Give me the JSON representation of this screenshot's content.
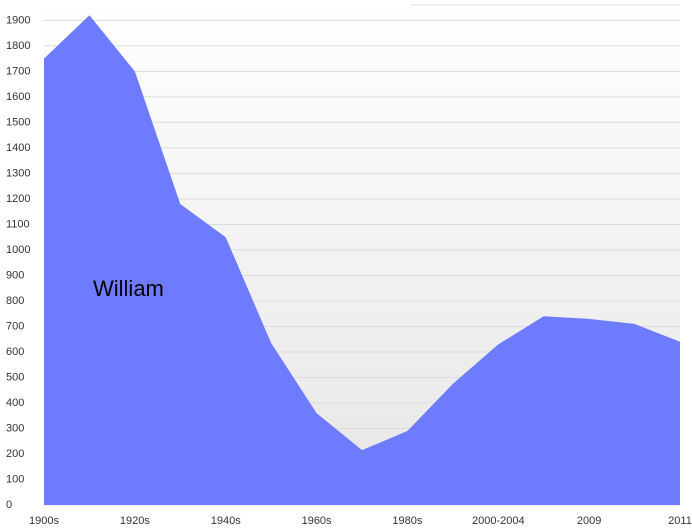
{
  "chart_data": {
    "type": "area",
    "categories": [
      "1900s",
      null,
      "1920s",
      null,
      "1940s",
      null,
      "1960s",
      null,
      "1980s",
      null,
      "2000-2004",
      null,
      "2009",
      null,
      "2011"
    ],
    "series": [
      {
        "name": "William",
        "color": "#6f7bff",
        "values": [
          1750,
          1920,
          1700,
          1180,
          1050,
          635,
          360,
          215,
          290,
          475,
          630,
          740,
          730,
          710,
          640
        ]
      }
    ],
    "ylim": [
      0,
      1980
    ],
    "yticks": [
      0,
      100,
      200,
      300,
      400,
      500,
      600,
      700,
      800,
      900,
      1000,
      1100,
      1200,
      1300,
      1400,
      1500,
      1600,
      1700,
      1800,
      1900
    ],
    "grid": true
  }
}
